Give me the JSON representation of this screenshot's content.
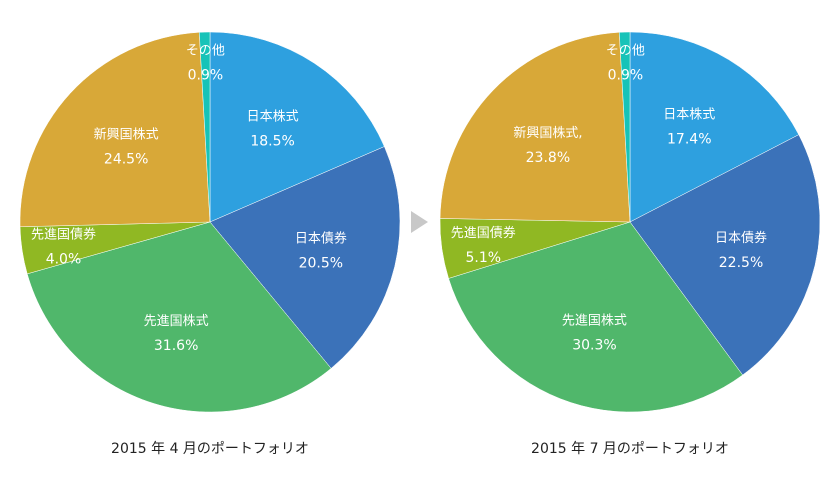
{
  "chart_data": [
    {
      "type": "pie",
      "title": "2015 年 4 月のポートフォリオ",
      "start": "top",
      "direction": "clockwise",
      "slices": [
        {
          "label": "日本株式",
          "value": 18.5,
          "value_label": "18.5%",
          "color": "#2ea0df"
        },
        {
          "label": "日本債券",
          "value": 20.5,
          "value_label": "20.5%",
          "color": "#3b72b9"
        },
        {
          "label": "先進国株式",
          "value": 31.6,
          "value_label": "31.6%",
          "color": "#50b76b"
        },
        {
          "label": "先進国債券",
          "value": 4.0,
          "value_label": "4.0%",
          "color": "#90b823"
        },
        {
          "label": "新興国株式",
          "value": 24.5,
          "value_label": "24.5%",
          "color": "#d8a838"
        },
        {
          "label": "その他",
          "value": 0.9,
          "value_label": "0.9%",
          "color": "#17c3b8"
        }
      ]
    },
    {
      "type": "pie",
      "title": "2015 年 7 月のポートフォリオ",
      "start": "top",
      "direction": "clockwise",
      "slices": [
        {
          "label": "日本株式",
          "value": 17.4,
          "value_label": "17.4%",
          "color": "#2ea0df"
        },
        {
          "label": "日本債券",
          "value": 22.5,
          "value_label": "22.5%",
          "color": "#3b72b9"
        },
        {
          "label": "先進国株式",
          "value": 30.3,
          "value_label": "30.3%",
          "color": "#50b76b"
        },
        {
          "label": "先進国債券",
          "value": 5.1,
          "value_label": "5.1%",
          "color": "#90b823"
        },
        {
          "label": "新興国株式,",
          "value": 23.8,
          "value_label": "23.8%",
          "color": "#d8a838"
        },
        {
          "label": "その他",
          "value": 0.9,
          "value_label": "0.9%",
          "color": "#17c3b8"
        }
      ]
    }
  ],
  "arrow_color": "#c8c8c8"
}
